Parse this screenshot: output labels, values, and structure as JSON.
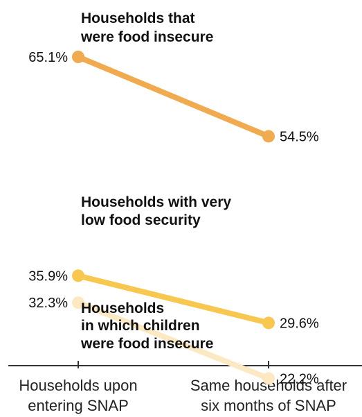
{
  "chart_data": {
    "type": "line",
    "categories": [
      "Households upon entering SNAP",
      "Same households after six months of SNAP"
    ],
    "x_tick_lines": [
      [
        "Households upon",
        "entering SNAP"
      ],
      [
        "Same households after",
        "six months of SNAP"
      ]
    ],
    "y_unit": "%",
    "ylim": [
      20,
      66
    ],
    "grid": false,
    "series": [
      {
        "name": "Households that were food insecure",
        "label_lines": [
          "Households that",
          "were food insecure"
        ],
        "values": [
          65.1,
          54.5
        ],
        "value_labels": [
          "65.1%",
          "54.5%"
        ],
        "color": "#F0AA50"
      },
      {
        "name": "Households with very low food security",
        "label_lines": [
          "Households with very",
          "low food security"
        ],
        "values": [
          35.9,
          29.6
        ],
        "value_labels": [
          "35.9%",
          "29.6%"
        ],
        "color": "#F8C750"
      },
      {
        "name": "Households in which children were food insecure",
        "label_lines": [
          "Households",
          "in which children",
          "were food insecure"
        ],
        "values": [
          32.3,
          22.2
        ],
        "value_labels": [
          "32.3%",
          "22.2%"
        ],
        "color": "#FCE8C2"
      }
    ]
  }
}
